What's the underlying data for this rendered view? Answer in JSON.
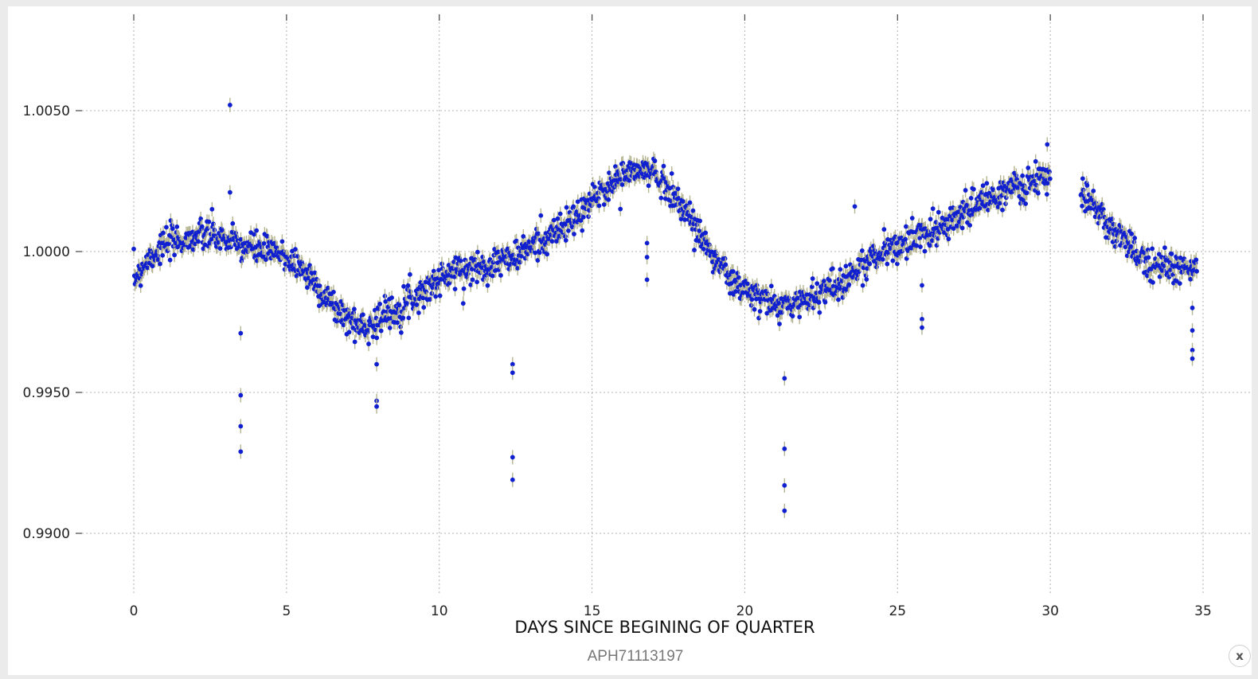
{
  "caption": "APH71113197",
  "close_button": {
    "icon": "close-icon",
    "label": "x"
  },
  "colors": {
    "point": "#1020d0",
    "errorbar": "#b5b591",
    "grid": "#b0b0b0"
  },
  "chart_data": {
    "type": "scatter",
    "title": "",
    "xlabel": "DAYS SINCE BEGINING OF QUARTER",
    "ylabel": "",
    "xlim": [
      -0.2,
      35.3
    ],
    "ylim": [
      0.9875,
      1.0085
    ],
    "xticks": [
      0,
      5,
      10,
      15,
      20,
      25,
      30,
      35
    ],
    "yticks": [
      0.99,
      0.995,
      1.0,
      1.005
    ],
    "ytick_labels": [
      "0.9900",
      "0.9950",
      "1.0000",
      "1.0050"
    ],
    "grid": true,
    "error_bars": true,
    "series": [
      {
        "trend_x": [
          0,
          0.5,
          1,
          1.5,
          2,
          2.5,
          3,
          3.5,
          4,
          4.5,
          5,
          5.5,
          6,
          6.5,
          7,
          7.5,
          8,
          8.5,
          9,
          9.5,
          10,
          10.5,
          11,
          11.5,
          12,
          12.5,
          13,
          13.5,
          14,
          14.5,
          15,
          15.5,
          16,
          16.5,
          17,
          17.5,
          18,
          18.5,
          19,
          19.5,
          20,
          20.5,
          21,
          21.5,
          22,
          22.5,
          23,
          23.5,
          24,
          24.5,
          25,
          25.5,
          26,
          26.5,
          27,
          27.5,
          28,
          28.5,
          29,
          29.5,
          30,
          31,
          31.5,
          32,
          32.5,
          33,
          33.5,
          34,
          34.5,
          34.8
        ],
        "trend_y": [
          0.999,
          0.9998,
          1.0002,
          1.0004,
          1.0005,
          1.0006,
          1.0004,
          1.0002,
          1.0001,
          1.0,
          0.9998,
          0.9994,
          0.9988,
          0.9981,
          0.9976,
          0.9973,
          0.9976,
          0.9979,
          0.9983,
          0.9986,
          0.999,
          0.9993,
          0.9994,
          0.9995,
          0.9997,
          0.9998,
          1.0002,
          1.0005,
          1.0008,
          1.0012,
          1.0018,
          1.0023,
          1.0027,
          1.0029,
          1.0028,
          1.0023,
          1.0015,
          1.0007,
          0.9998,
          0.999,
          0.9986,
          0.9983,
          0.9981,
          0.9981,
          0.9983,
          0.9986,
          0.9988,
          0.9992,
          0.9996,
          1.0,
          1.0002,
          1.0004,
          1.0007,
          1.001,
          1.0013,
          1.0016,
          1.0019,
          1.0021,
          1.0023,
          1.0025,
          1.0025,
          1.0022,
          1.0015,
          1.0008,
          1.0002,
          0.9998,
          0.9996,
          0.9994,
          0.9993,
          0.9994
        ],
        "outliers_x": [
          3.15,
          3.15,
          3.5,
          3.5,
          3.5,
          3.5,
          7.95,
          7.95,
          7.95,
          12.4,
          12.4,
          12.4,
          12.4,
          16.8,
          16.8,
          16.8,
          21.3,
          21.3,
          21.3,
          21.3,
          23.6,
          25.8,
          25.8,
          25.8,
          29.9,
          34.65,
          34.65,
          34.65,
          34.65
        ],
        "outliers_y": [
          1.0052,
          1.0021,
          0.9971,
          0.9949,
          0.9938,
          0.9929,
          0.996,
          0.9947,
          0.9945,
          0.996,
          0.9957,
          0.9927,
          0.9919,
          1.0003,
          0.9998,
          0.999,
          0.9955,
          0.993,
          0.9917,
          0.9908,
          1.0016,
          0.9988,
          0.9976,
          0.9973,
          1.0038,
          0.998,
          0.9972,
          0.9965,
          0.9962
        ]
      }
    ]
  }
}
